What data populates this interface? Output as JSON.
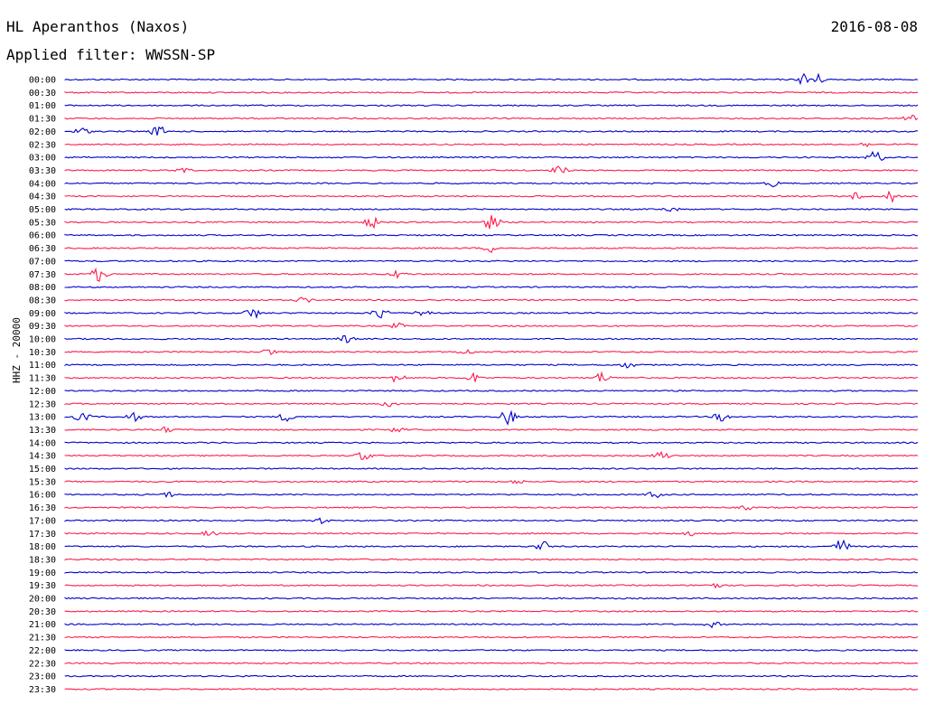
{
  "header": {
    "station": "HL Aperanthos (Naxos)",
    "date": "2016-08-08",
    "filter_text": "Applied filter: WWSSN-SP"
  },
  "channel_label": "HHZ - 20000",
  "colors": {
    "even": "#0000cc",
    "odd": "#ff1a4d"
  },
  "rows": [
    {
      "time": "00:00",
      "events": [
        [
          0.87,
          10
        ],
        [
          0.88,
          8
        ]
      ]
    },
    {
      "time": "00:30",
      "events": []
    },
    {
      "time": "01:00",
      "events": []
    },
    {
      "time": "01:30",
      "events": [
        [
          0.99,
          6
        ]
      ]
    },
    {
      "time": "02:00",
      "events": [
        [
          0.02,
          5
        ],
        [
          0.11,
          7
        ]
      ]
    },
    {
      "time": "02:30",
      "events": [
        [
          0.94,
          3
        ]
      ]
    },
    {
      "time": "03:00",
      "events": [
        [
          0.95,
          8
        ]
      ]
    },
    {
      "time": "03:30",
      "events": [
        [
          0.14,
          4
        ],
        [
          0.58,
          6
        ]
      ]
    },
    {
      "time": "04:00",
      "events": [
        [
          0.83,
          4
        ]
      ]
    },
    {
      "time": "04:30",
      "events": [
        [
          0.93,
          6
        ],
        [
          0.97,
          7
        ]
      ]
    },
    {
      "time": "05:00",
      "events": [
        [
          0.71,
          4
        ]
      ]
    },
    {
      "time": "05:30",
      "events": [
        [
          0.36,
          7
        ],
        [
          0.5,
          9
        ]
      ]
    },
    {
      "time": "06:00",
      "events": []
    },
    {
      "time": "06:30",
      "events": [
        [
          0.5,
          5
        ]
      ]
    },
    {
      "time": "07:00",
      "events": []
    },
    {
      "time": "07:30",
      "events": [
        [
          0.04,
          9
        ],
        [
          0.39,
          5
        ]
      ]
    },
    {
      "time": "08:00",
      "events": []
    },
    {
      "time": "08:30",
      "events": [
        [
          0.28,
          4
        ]
      ]
    },
    {
      "time": "09:00",
      "events": [
        [
          0.22,
          7
        ],
        [
          0.37,
          8
        ],
        [
          0.42,
          7
        ]
      ]
    },
    {
      "time": "09:30",
      "events": [
        [
          0.39,
          4
        ]
      ]
    },
    {
      "time": "10:00",
      "events": [
        [
          0.33,
          5
        ]
      ]
    },
    {
      "time": "10:30",
      "events": [
        [
          0.24,
          5
        ],
        [
          0.47,
          4
        ]
      ]
    },
    {
      "time": "11:00",
      "events": [
        [
          0.66,
          4
        ]
      ]
    },
    {
      "time": "11:30",
      "events": [
        [
          0.39,
          6
        ],
        [
          0.48,
          6
        ],
        [
          0.63,
          7
        ]
      ]
    },
    {
      "time": "12:00",
      "events": []
    },
    {
      "time": "12:30",
      "events": [
        [
          0.38,
          4
        ]
      ]
    },
    {
      "time": "13:00",
      "events": [
        [
          0.02,
          6
        ],
        [
          0.08,
          6
        ],
        [
          0.26,
          6
        ],
        [
          0.52,
          9
        ],
        [
          0.77,
          6
        ]
      ]
    },
    {
      "time": "13:30",
      "events": [
        [
          0.12,
          4
        ],
        [
          0.39,
          4
        ]
      ]
    },
    {
      "time": "14:00",
      "events": []
    },
    {
      "time": "14:30",
      "events": [
        [
          0.35,
          6
        ],
        [
          0.7,
          6
        ]
      ]
    },
    {
      "time": "15:00",
      "events": []
    },
    {
      "time": "15:30",
      "events": [
        [
          0.53,
          3
        ]
      ]
    },
    {
      "time": "16:00",
      "events": [
        [
          0.12,
          4
        ],
        [
          0.69,
          5
        ]
      ]
    },
    {
      "time": "16:30",
      "events": [
        [
          0.8,
          3
        ]
      ]
    },
    {
      "time": "17:00",
      "events": [
        [
          0.3,
          4
        ]
      ]
    },
    {
      "time": "17:30",
      "events": [
        [
          0.17,
          4
        ],
        [
          0.73,
          4
        ]
      ]
    },
    {
      "time": "18:00",
      "events": [
        [
          0.56,
          7
        ],
        [
          0.91,
          9
        ]
      ]
    },
    {
      "time": "18:30",
      "events": []
    },
    {
      "time": "19:00",
      "events": []
    },
    {
      "time": "19:30",
      "events": [
        [
          0.76,
          5
        ]
      ]
    },
    {
      "time": "20:00",
      "events": []
    },
    {
      "time": "20:30",
      "events": []
    },
    {
      "time": "21:00",
      "events": [
        [
          0.76,
          4
        ]
      ]
    },
    {
      "time": "21:30",
      "events": []
    },
    {
      "time": "22:00",
      "events": []
    },
    {
      "time": "22:30",
      "events": []
    },
    {
      "time": "23:00",
      "events": []
    },
    {
      "time": "23:30",
      "events": []
    }
  ]
}
